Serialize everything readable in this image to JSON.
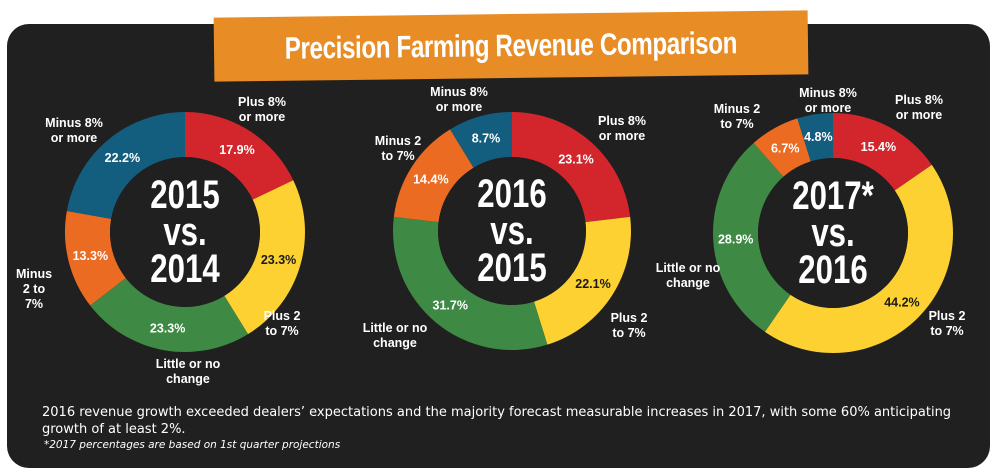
{
  "title": "Precision Farming Revenue Comparison",
  "colors": {
    "plus_8": "#D3262C",
    "plus_2_7": "#FDD131",
    "little_change": "#3E8944",
    "minus_2_7": "#EC6B22",
    "minus_8": "#135E7E",
    "background": "#202020",
    "banner": "#E88D26"
  },
  "chart_data": [
    {
      "type": "pie",
      "style": "donut",
      "center_label": [
        "2015",
        "vs.",
        "2014"
      ],
      "categories": [
        "Plus 8% or more",
        "Plus 2 to 7%",
        "Little or no change",
        "Minus 2 to 7%",
        "Minus 8% or more"
      ],
      "values": [
        17.9,
        23.3,
        23.3,
        13.3,
        22.2
      ],
      "value_labels": [
        "17.9%",
        "23.3%",
        "23.3%",
        "13.3%",
        "22.2%"
      ],
      "category_label_lines": [
        [
          "Plus 8%",
          "or more"
        ],
        [
          "Plus 2",
          "to 7%"
        ],
        [
          "Little or no",
          "change"
        ],
        [
          "Minus",
          "2 to",
          "7%"
        ],
        [
          "Minus 8%",
          "or more"
        ]
      ]
    },
    {
      "type": "pie",
      "style": "donut",
      "center_label": [
        "2016",
        "vs.",
        "2015"
      ],
      "categories": [
        "Plus 8% or more",
        "Plus 2 to 7%",
        "Little or no change",
        "Minus 2 to 7%",
        "Minus 8% or more"
      ],
      "values": [
        23.1,
        22.1,
        31.7,
        14.4,
        8.7
      ],
      "value_labels": [
        "23.1%",
        "22.1%",
        "31.7%",
        "14.4%",
        "8.7%"
      ],
      "category_label_lines": [
        [
          "Plus 8%",
          "or more"
        ],
        [
          "Plus 2",
          "to 7%"
        ],
        [
          "Little or no",
          "change"
        ],
        [
          "Minus 2",
          "to 7%"
        ],
        [
          "Minus 8%",
          "or more"
        ]
      ]
    },
    {
      "type": "pie",
      "style": "donut",
      "center_label": [
        "2017*",
        "vs.",
        "2016"
      ],
      "categories": [
        "Plus 8% or more",
        "Plus 2 to 7%",
        "Little or no change",
        "Minus 2 to 7%",
        "Minus 8% or more"
      ],
      "values": [
        15.4,
        44.2,
        28.9,
        6.7,
        4.8
      ],
      "value_labels": [
        "15.4%",
        "44.2%",
        "28.9%",
        "6.7%",
        "4.8%"
      ],
      "category_label_lines": [
        [
          "Plus 8%",
          "or more"
        ],
        [
          "Plus 2",
          "to 7%"
        ],
        [
          "Little or no",
          "change"
        ],
        [
          "Minus 2",
          "to 7%"
        ],
        [
          "Minus 8%",
          "or more"
        ]
      ]
    }
  ],
  "caption": "2016 revenue growth exceeded dealers’ expectations and the majority forecast measurable increases in 2017, with some 60% anticipating growth of at least 2%.",
  "footnote": "*2017 percentages are based on 1st quarter projections"
}
